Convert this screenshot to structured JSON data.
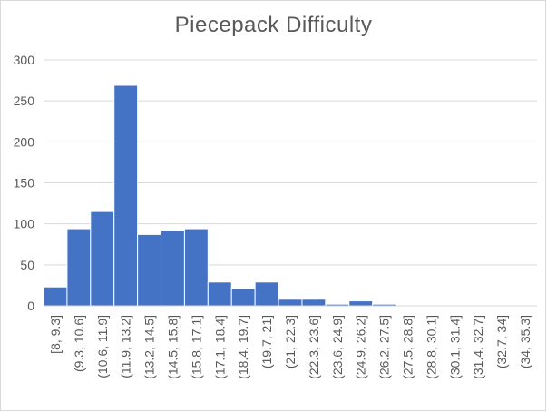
{
  "chart_data": {
    "type": "bar",
    "title": "Piecepack Difficulty",
    "xlabel": "",
    "ylabel": "",
    "categories": [
      "[8, 9.3]",
      "(9.3, 10.6]",
      "(10.6, 11.9]",
      "(11.9, 13.2]",
      "(13.2, 14.5]",
      "(14.5, 15.8]",
      "(15.8, 17.1]",
      "(17.1, 18.4]",
      "(18.4, 19.7]",
      "(19.7, 21]",
      "(21, 22.3]",
      "(22.3, 23.6]",
      "(23.6, 24.9]",
      "(24.9, 26.2]",
      "(26.2, 27.5]",
      "(27.5, 28.8]",
      "(28.8, 30.1]",
      "(30.1, 31.4]",
      "(31.4, 32.7]",
      "(32.7, 34]",
      "(34, 35.3]"
    ],
    "values": [
      23,
      94,
      115,
      269,
      87,
      92,
      94,
      29,
      21,
      29,
      8,
      8,
      2,
      6,
      2,
      0,
      0,
      0,
      0,
      0,
      0
    ],
    "ylim": [
      0,
      300
    ],
    "yticks": [
      0,
      50,
      100,
      150,
      200,
      250,
      300
    ],
    "grid": true,
    "legend": "none",
    "colors": {
      "bar": "#4472c4",
      "bar_edge": "#ffffff",
      "grid": "#d9d9d9",
      "text": "#595959"
    }
  }
}
